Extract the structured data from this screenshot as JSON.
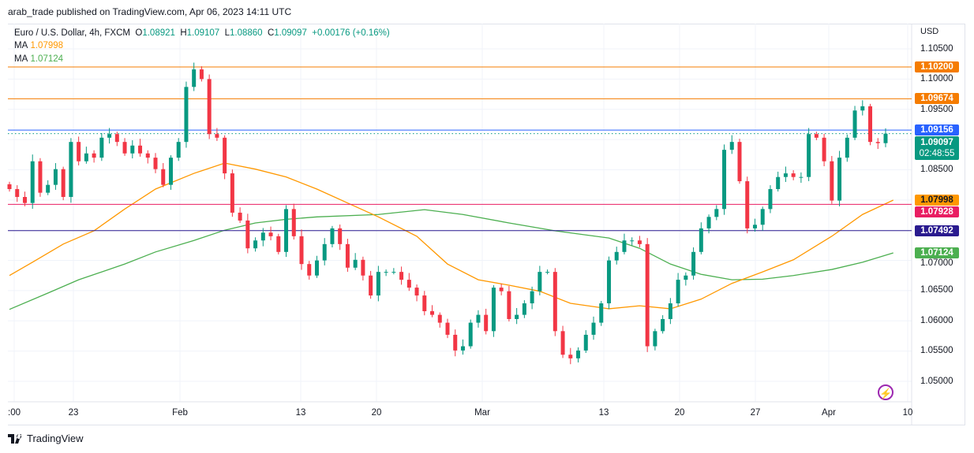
{
  "header": {
    "published": "arab_trade published on TradingView.com, Apr 06, 2023 14:11 UTC"
  },
  "legend": {
    "symbol": "Euro / U.S. Dollar, 4h, FXCM",
    "o_label": "O",
    "o": "1.08921",
    "h_label": "H",
    "h": "1.09107",
    "l_label": "L",
    "l": "1.08860",
    "c_label": "C",
    "c": "1.09097",
    "change": "+0.00176 (+0.16%)",
    "ma1_label": "MA",
    "ma1": "1.07998",
    "ma2_label": "MA",
    "ma2": "1.07124"
  },
  "price_axis": {
    "currency": "USD",
    "ticks": [
      "1.10500",
      "1.10000",
      "1.09500",
      "1.08500",
      "1.07000",
      "1.06500",
      "1.06000",
      "1.05500",
      "1.05000"
    ]
  },
  "price_labels": [
    {
      "name": "resistance-1-label",
      "value": "1.10200",
      "color": "#f57c00"
    },
    {
      "name": "resistance-2-label",
      "value": "1.09674",
      "color": "#f57c00"
    },
    {
      "name": "level-blue-label",
      "value": "1.09156",
      "color": "#2962ff"
    },
    {
      "name": "ma-fast-label",
      "value": "1.07998",
      "color": "#ff9800"
    },
    {
      "name": "support-pink-label",
      "value": "1.07928",
      "color": "#e91e63"
    },
    {
      "name": "support-navy-label",
      "value": "1.07492",
      "color": "#2a1b8f"
    },
    {
      "name": "ma-slow-label",
      "value": "1.07124",
      "color": "#4caf50"
    }
  ],
  "current_price": {
    "value": "1.09097",
    "countdown": "02:48:55",
    "color": "#089981"
  },
  "time_axis": {
    "ticks": [
      ":00",
      "23",
      "Feb",
      "13",
      "20",
      "Mar",
      "13",
      "20",
      "27",
      "Apr",
      "10"
    ]
  },
  "footer": {
    "brand": "TradingView"
  },
  "chart_data": {
    "type": "candlestick",
    "title": "Euro / U.S. Dollar, 4h, FXCM",
    "ylim": [
      1.047,
      1.109
    ],
    "colors": {
      "up": "#089981",
      "down": "#f23645",
      "ma_fast": "#ff9800",
      "ma_slow": "#4caf50"
    },
    "closes": [
      1.0818,
      1.0805,
      1.0795,
      1.0864,
      1.0812,
      1.0825,
      1.0851,
      1.0805,
      1.0896,
      1.0864,
      1.0877,
      1.087,
      1.0903,
      1.0909,
      1.0896,
      1.0877,
      1.089,
      1.0877,
      1.087,
      1.0851,
      1.0825,
      1.087,
      1.0896,
      1.0987,
      1.1016,
      1.1,
      1.0909,
      1.0903,
      1.0844,
      1.0779,
      1.0766,
      1.072,
      1.0733,
      1.0746,
      1.074,
      1.0714,
      1.0785,
      1.074,
      1.0694,
      1.0675,
      1.07,
      1.0727,
      1.0753,
      1.0727,
      1.0688,
      1.0701,
      1.0675,
      1.0642,
      1.0681,
      1.0681,
      1.0681,
      1.0668,
      1.0655,
      1.0642,
      1.0616,
      1.061,
      1.0597,
      1.0577,
      1.0551,
      1.0558,
      1.0597,
      1.061,
      1.0583,
      1.0655,
      1.0649,
      1.0603,
      1.061,
      1.0629,
      1.0649,
      1.0681,
      1.0681,
      1.0583,
      1.0544,
      1.0538,
      1.0551,
      1.0577,
      1.0597,
      1.0629,
      1.07,
      1.0714,
      1.0733,
      1.0733,
      1.0727,
      1.0558,
      1.0583,
      1.0603,
      1.0629,
      1.0668,
      1.0675,
      1.0714,
      1.0753,
      1.0772,
      1.0785,
      1.0883,
      1.0896,
      1.0831,
      1.0753,
      1.0759,
      1.0785,
      1.0818,
      1.0838,
      1.0844,
      1.0838,
      1.0838,
      1.0909,
      1.0903,
      1.0864,
      1.0799,
      1.087,
      1.0903,
      1.0948,
      1.0955,
      1.0896,
      1.0894,
      1.09097
    ],
    "ma_fast": [
      [
        0,
        1.0675
      ],
      [
        3,
        1.0697
      ],
      [
        7,
        1.0727
      ],
      [
        11,
        1.0749
      ],
      [
        15,
        1.0785
      ],
      [
        19,
        1.0818
      ],
      [
        24,
        1.0844
      ],
      [
        28,
        1.0861
      ],
      [
        32,
        1.0851
      ],
      [
        36,
        1.0838
      ],
      [
        40,
        1.0818
      ],
      [
        44,
        1.0795
      ],
      [
        48,
        1.0772
      ],
      [
        53,
        1.074
      ],
      [
        57,
        1.0694
      ],
      [
        61,
        1.0668
      ],
      [
        65,
        1.0659
      ],
      [
        69,
        1.0649
      ],
      [
        73,
        1.0629
      ],
      [
        78,
        1.062
      ],
      [
        82,
        1.0625
      ],
      [
        86,
        1.062
      ],
      [
        90,
        1.0636
      ],
      [
        94,
        1.0662
      ],
      [
        98,
        1.0681
      ],
      [
        102,
        1.0701
      ],
      [
        107,
        1.074
      ],
      [
        111,
        1.0776
      ],
      [
        115,
        1.07998
      ]
    ],
    "ma_slow": [
      [
        0,
        1.0619
      ],
      [
        5,
        1.0646
      ],
      [
        9,
        1.0668
      ],
      [
        15,
        1.0694
      ],
      [
        19,
        1.0714
      ],
      [
        24,
        1.0733
      ],
      [
        28,
        1.075
      ],
      [
        32,
        1.0762
      ],
      [
        36,
        1.0768
      ],
      [
        40,
        1.0772
      ],
      [
        48,
        1.0776
      ],
      [
        54,
        1.0784
      ],
      [
        59,
        1.0776
      ],
      [
        65,
        1.0762
      ],
      [
        71,
        1.0749
      ],
      [
        78,
        1.0737
      ],
      [
        82,
        1.072
      ],
      [
        86,
        1.0694
      ],
      [
        90,
        1.0677
      ],
      [
        94,
        1.0668
      ],
      [
        98,
        1.0669
      ],
      [
        102,
        1.0675
      ],
      [
        107,
        1.0685
      ],
      [
        111,
        1.0697
      ],
      [
        115,
        1.07124
      ]
    ],
    "levels": [
      {
        "price": 1.102,
        "color": "#f57c00"
      },
      {
        "price": 1.09674,
        "color": "#f57c00"
      },
      {
        "price": 1.09156,
        "color": "#2962ff"
      },
      {
        "price": 1.07928,
        "color": "#e91e63"
      },
      {
        "price": 1.07492,
        "color": "#2a1b8f"
      }
    ],
    "price_ticks": [
      1.105,
      1.1,
      1.095,
      1.09,
      1.085,
      1.08,
      1.075,
      1.07,
      1.065,
      1.06,
      1.055,
      1.05
    ]
  }
}
